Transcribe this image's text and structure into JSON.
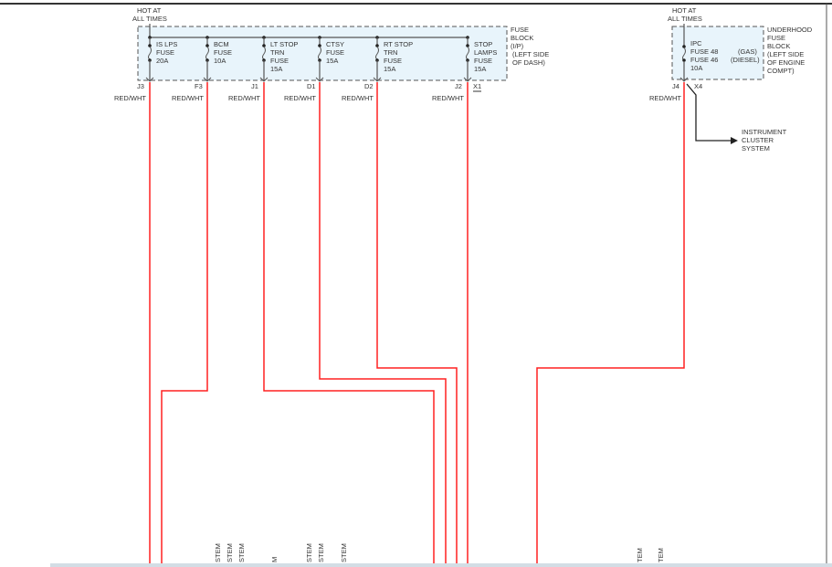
{
  "fuse_block_ip": {
    "hot_label": [
      "HOT AT",
      "ALL TIMES"
    ],
    "block_label": [
      "FUSE",
      "BLOCK",
      "(I/P)",
      "(LEFT SIDE",
      "OF DASH)"
    ],
    "connector_x1": "X1",
    "fuses": [
      {
        "lines": [
          "IS LPS",
          "FUSE",
          "20A"
        ],
        "pin": "J3",
        "wire": "RED/WHT"
      },
      {
        "lines": [
          "BCM",
          "FUSE",
          "10A"
        ],
        "pin": "F3",
        "wire": "RED/WHT"
      },
      {
        "lines": [
          "LT STOP",
          "TRN",
          "FUSE",
          "15A"
        ],
        "pin": "J1",
        "wire": "RED/WHT"
      },
      {
        "lines": [
          "CTSY",
          "FUSE",
          "15A"
        ],
        "pin": "D1",
        "wire": "RED/WHT"
      },
      {
        "lines": [
          "RT STOP",
          "TRN",
          "FUSE",
          "15A"
        ],
        "pin": "D2",
        "wire": "RED/WHT"
      },
      {
        "lines": [
          "STOP",
          "LAMPS",
          "FUSE",
          "15A"
        ],
        "pin": "J2",
        "wire": "RED/WHT"
      }
    ]
  },
  "fuse_block_underhood": {
    "hot_label": [
      "HOT AT",
      "ALL TIMES"
    ],
    "block_label": [
      "UNDERHOOD",
      "FUSE",
      "BLOCK",
      "(LEFT SIDE",
      "OF ENGINE",
      "COMPT)"
    ],
    "fuse_lines": [
      "IPC",
      "FUSE 48",
      "FUSE 46",
      "10A"
    ],
    "variants": [
      "(GAS)",
      "(DIESEL)"
    ],
    "pin": "J4",
    "connector": "X4",
    "wire": "RED/WHT",
    "destination": [
      "INSTRUMENT",
      "CLUSTER",
      "SYSTEM"
    ]
  },
  "bottom_fragments": [
    "STEM",
    "STEM",
    "STEM",
    "M",
    "STEM",
    "STEM",
    "STEM",
    "TEM",
    "TEM"
  ],
  "colors": {
    "wire": "#ff1a1a",
    "block_fill": "#e8f4fb",
    "ground": "#333333"
  }
}
